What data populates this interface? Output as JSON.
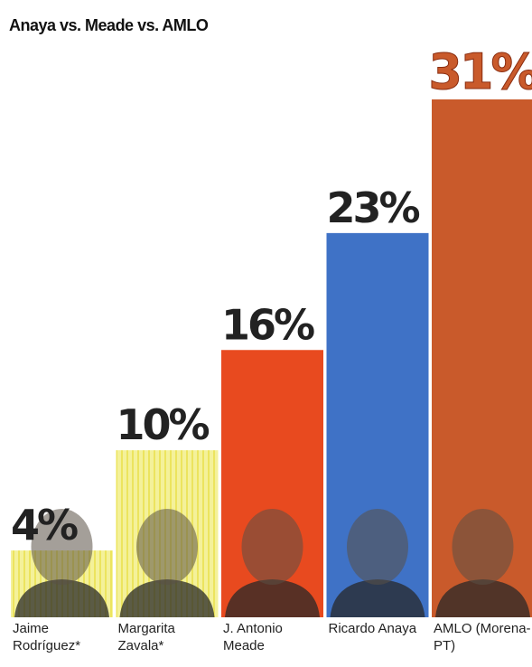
{
  "chart_data": {
    "type": "bar",
    "title": "Anaya vs. Meade vs. AMLO",
    "categories": [
      "Jaime Rodríguez*",
      "Margarita Zavala*",
      "J. Antonio Meade",
      "Ricardo Anaya",
      "AMLO (Morena-PT)"
    ],
    "values": [
      4,
      10,
      16,
      23,
      31
    ],
    "value_labels": [
      "4%",
      "10%",
      "16%",
      "23%",
      "31%"
    ],
    "colors": [
      "#f2ee86",
      "#f2ec78",
      "#e84a1f",
      "#3f72c6",
      "#c95a2b"
    ]
  }
}
